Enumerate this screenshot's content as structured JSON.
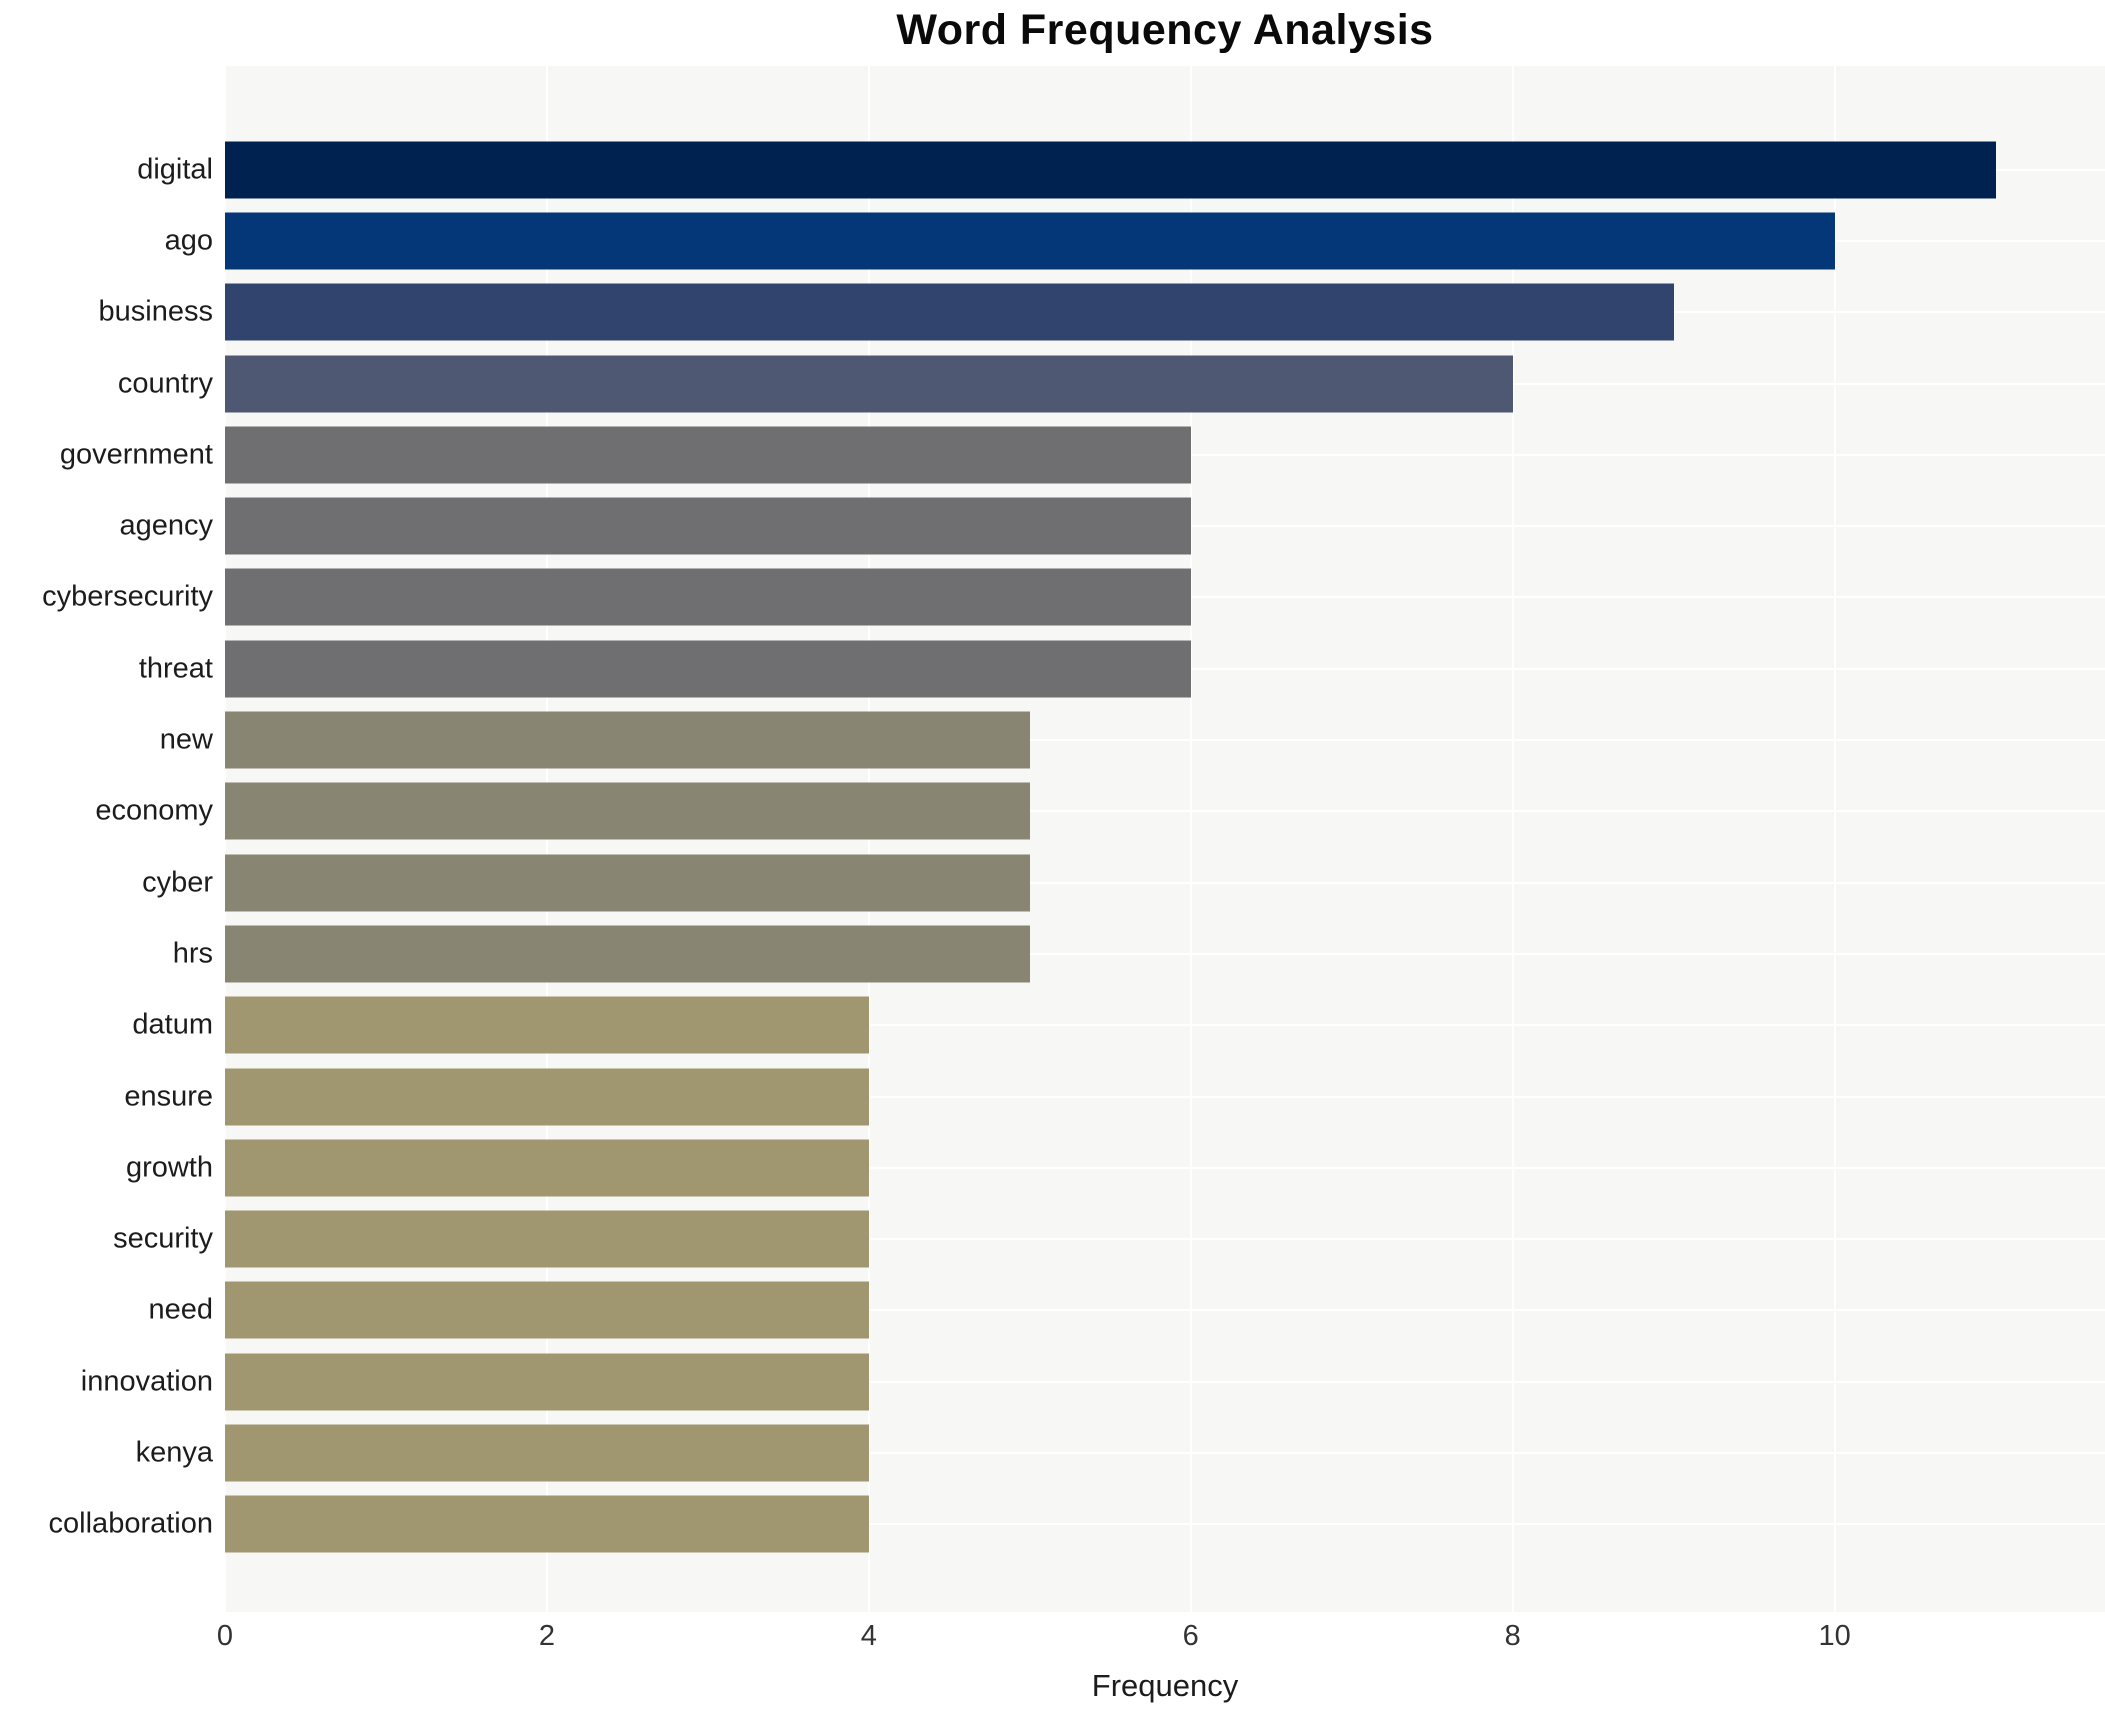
{
  "title": "Word Frequency Analysis",
  "chart_data": {
    "type": "bar",
    "orientation": "horizontal",
    "title": "Word Frequency Analysis",
    "xlabel": "Frequency",
    "ylabel": "",
    "categories": [
      "digital",
      "ago",
      "business",
      "country",
      "government",
      "agency",
      "cybersecurity",
      "threat",
      "new",
      "economy",
      "cyber",
      "hrs",
      "datum",
      "ensure",
      "growth",
      "security",
      "need",
      "innovation",
      "kenya",
      "collaboration"
    ],
    "values": [
      11,
      10,
      9,
      8,
      6,
      6,
      6,
      6,
      5,
      5,
      5,
      5,
      4,
      4,
      4,
      4,
      4,
      4,
      4,
      4
    ],
    "bar_colors": [
      "#002250",
      "#043778",
      "#30446e",
      "#4e5873",
      "#6f6f71",
      "#6f6f71",
      "#6f6f71",
      "#6f6f71",
      "#888672",
      "#888672",
      "#888672",
      "#888672",
      "#a09770",
      "#a09770",
      "#a09770",
      "#a09770",
      "#a09770",
      "#a09770",
      "#a09770",
      "#a09770"
    ],
    "xticks": [
      0,
      2,
      4,
      6,
      8,
      10
    ],
    "xlim": [
      0,
      11.68
    ],
    "grid": true,
    "legend": false,
    "plot_background": "#f7f7f6",
    "grid_color": "#ffffff",
    "colormap": "cividis"
  }
}
